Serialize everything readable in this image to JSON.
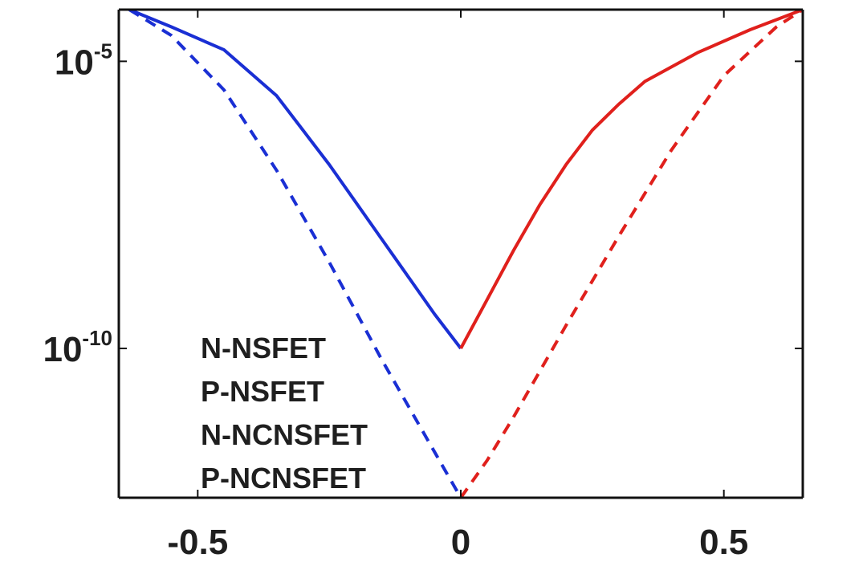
{
  "chart_data": {
    "type": "line",
    "title": "",
    "xlabel": "",
    "ylabel": "",
    "y_scale": "log",
    "xlim": [
      -0.65,
      0.65
    ],
    "ylim_log10": [
      -12.6,
      -4.1
    ],
    "grid": false,
    "x_ticks": [
      {
        "value": -0.5,
        "label": "-0.5"
      },
      {
        "value": 0,
        "label": "0"
      },
      {
        "value": 0.5,
        "label": "0.5"
      }
    ],
    "y_ticks": [
      {
        "value_log10": -5,
        "base": "10",
        "exponent": "-5"
      },
      {
        "value_log10": -10,
        "base": "10",
        "exponent": "-10"
      }
    ],
    "legend": {
      "placement": "bottom-left",
      "entries": [
        "N-NSFET",
        "P-NSFET",
        "N-NCNSFET",
        "P-NCNSFET"
      ]
    },
    "series": [
      {
        "name": "P-NSFET",
        "color": "#1a2fd4",
        "style": "solid",
        "x": [
          -0.63,
          -0.55,
          -0.45,
          -0.35,
          -0.25,
          -0.15,
          -0.05,
          0
        ],
        "y_log10": [
          -4.1,
          -4.4,
          -4.8,
          -5.6,
          -6.8,
          -8.1,
          -9.4,
          -10.0
        ]
      },
      {
        "name": "N-NSFET",
        "color": "#e0201c",
        "style": "solid",
        "x": [
          0,
          0.05,
          0.1,
          0.15,
          0.2,
          0.25,
          0.3,
          0.35,
          0.45,
          0.55,
          0.65
        ],
        "y_log10": [
          -10.0,
          -9.15,
          -8.3,
          -7.5,
          -6.8,
          -6.2,
          -5.75,
          -5.35,
          -4.85,
          -4.45,
          -4.1
        ]
      },
      {
        "name": "P-NCNSFET",
        "color": "#1a2fd4",
        "style": "dashed",
        "x": [
          -0.63,
          -0.55,
          -0.45,
          -0.35,
          -0.25,
          -0.15,
          -0.05,
          0
        ],
        "y_log10": [
          -4.1,
          -4.55,
          -5.5,
          -6.9,
          -8.5,
          -10.2,
          -11.8,
          -12.6
        ]
      },
      {
        "name": "N-NCNSFET",
        "color": "#e0201c",
        "style": "dashed",
        "x": [
          0,
          0.05,
          0.1,
          0.2,
          0.3,
          0.4,
          0.5,
          0.6,
          0.65
        ],
        "y_log10": [
          -12.6,
          -11.95,
          -11.2,
          -9.6,
          -8.05,
          -6.55,
          -5.25,
          -4.4,
          -4.1
        ]
      }
    ]
  }
}
